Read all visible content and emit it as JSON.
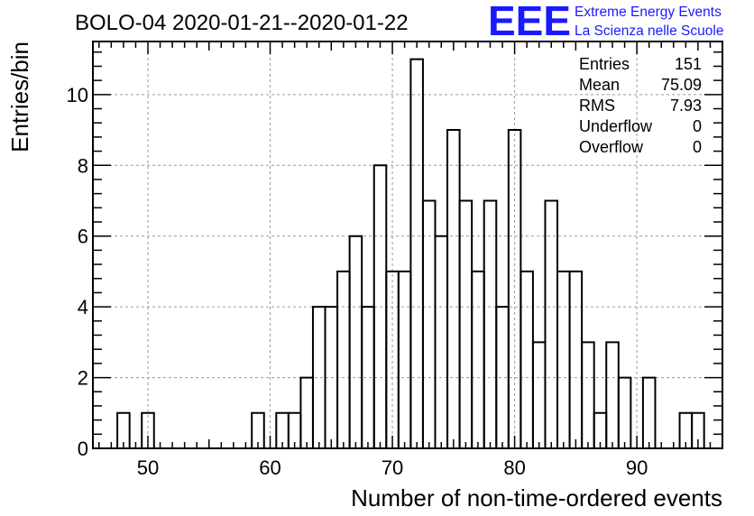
{
  "title": "BOLO-04 2020-01-21--2020-01-22",
  "logo": {
    "letters": "EEE",
    "line1": "Extreme Energy Events",
    "line2": "La Scienza nelle Scuole",
    "color": "#1a1aff"
  },
  "stats": [
    {
      "label": "Entries",
      "value": "151"
    },
    {
      "label": "Mean",
      "value": "75.09"
    },
    {
      "label": "RMS",
      "value": "7.93"
    },
    {
      "label": "Underflow",
      "value": "0"
    },
    {
      "label": "Overflow",
      "value": "0"
    }
  ],
  "chart_data": {
    "type": "bar",
    "style": "step-histogram",
    "title": "BOLO-04 2020-01-21--2020-01-22",
    "xlabel": "Number of non-time-ordered events",
    "ylabel": "Entries/bin",
    "xlim": [
      45.5,
      97
    ],
    "ylim": [
      0,
      11.5
    ],
    "bin_width": 1,
    "xticks": [
      50,
      60,
      70,
      80,
      90
    ],
    "yticks": [
      0,
      2,
      4,
      6,
      8,
      10
    ],
    "grid": true,
    "bins": [
      {
        "x": 48,
        "count": 1
      },
      {
        "x": 50,
        "count": 1
      },
      {
        "x": 59,
        "count": 1
      },
      {
        "x": 61,
        "count": 1
      },
      {
        "x": 62,
        "count": 1
      },
      {
        "x": 63,
        "count": 2
      },
      {
        "x": 64,
        "count": 4
      },
      {
        "x": 65,
        "count": 4
      },
      {
        "x": 66,
        "count": 5
      },
      {
        "x": 67,
        "count": 6
      },
      {
        "x": 68,
        "count": 4
      },
      {
        "x": 69,
        "count": 8
      },
      {
        "x": 70,
        "count": 5
      },
      {
        "x": 71,
        "count": 5
      },
      {
        "x": 72,
        "count": 11
      },
      {
        "x": 73,
        "count": 7
      },
      {
        "x": 74,
        "count": 6
      },
      {
        "x": 75,
        "count": 9
      },
      {
        "x": 76,
        "count": 7
      },
      {
        "x": 77,
        "count": 5
      },
      {
        "x": 78,
        "count": 7
      },
      {
        "x": 79,
        "count": 4
      },
      {
        "x": 80,
        "count": 9
      },
      {
        "x": 81,
        "count": 5
      },
      {
        "x": 82,
        "count": 3
      },
      {
        "x": 83,
        "count": 7
      },
      {
        "x": 84,
        "count": 5
      },
      {
        "x": 85,
        "count": 5
      },
      {
        "x": 86,
        "count": 3
      },
      {
        "x": 87,
        "count": 1
      },
      {
        "x": 88,
        "count": 3
      },
      {
        "x": 89,
        "count": 2
      },
      {
        "x": 91,
        "count": 2
      },
      {
        "x": 94,
        "count": 1
      },
      {
        "x": 95,
        "count": 1
      }
    ]
  }
}
